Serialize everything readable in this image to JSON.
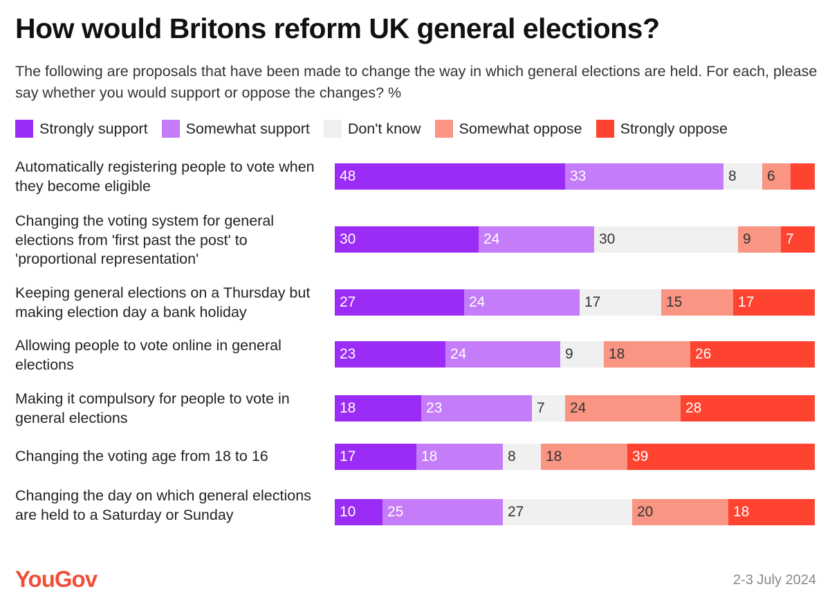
{
  "title": "How would Britons reform UK general elections?",
  "subtitle": "The following are proposals that have been made to change the way in which general elections are held. For each, please say whether you would support or oppose the changes? %",
  "footer": {
    "logo": "YouGov",
    "date": "2-3 July 2024"
  },
  "chart_data": {
    "type": "bar",
    "orientation": "horizontal",
    "stacked": true,
    "unit": "%",
    "legend_placement": "top",
    "grid": false,
    "categories": [
      "Automatically registering people to vote when they become eligible",
      "Changing the voting system for general elections from 'first past the post' to 'proportional representation'",
      "Keeping general elections on a Thursday but making election day a bank holiday",
      "Allowing people to vote online in general elections",
      "Making it compulsory for people to vote in general elections",
      "Changing the voting age from 18 to 16",
      "Changing the day on which general elections are held to a Saturday or Sunday"
    ],
    "series": [
      {
        "name": "Strongly support",
        "color": "#9b2cf5",
        "text_color": "#ffffff",
        "values": [
          48,
          30,
          27,
          23,
          18,
          17,
          10
        ]
      },
      {
        "name": "Somewhat support",
        "color": "#c57cf9",
        "text_color": "#ffffff",
        "values": [
          33,
          24,
          24,
          24,
          23,
          18,
          25
        ]
      },
      {
        "name": "Don't know",
        "color": "#f0f0f0",
        "text_color": "#333333",
        "values": [
          8,
          30,
          17,
          9,
          7,
          8,
          27
        ]
      },
      {
        "name": "Somewhat oppose",
        "color": "#f99582",
        "text_color": "#333333",
        "values": [
          6,
          9,
          15,
          18,
          24,
          18,
          20
        ]
      },
      {
        "name": "Strongly oppose",
        "color": "#fe4330",
        "text_color": "#ffffff",
        "values": [
          5,
          7,
          17,
          26,
          28,
          39,
          18
        ]
      }
    ],
    "data_labels": [
      [
        "48",
        "33",
        "8",
        "6",
        ""
      ],
      [
        "30",
        "24",
        "30",
        "9",
        "7"
      ],
      [
        "27",
        "24",
        "17",
        "15",
        "17"
      ],
      [
        "23",
        "24",
        "9",
        "18",
        "26"
      ],
      [
        "18",
        "23",
        "7",
        "24",
        "28"
      ],
      [
        "17",
        "18",
        "8",
        "18",
        "39"
      ],
      [
        "10",
        "25",
        "27",
        "20",
        "18"
      ]
    ]
  }
}
